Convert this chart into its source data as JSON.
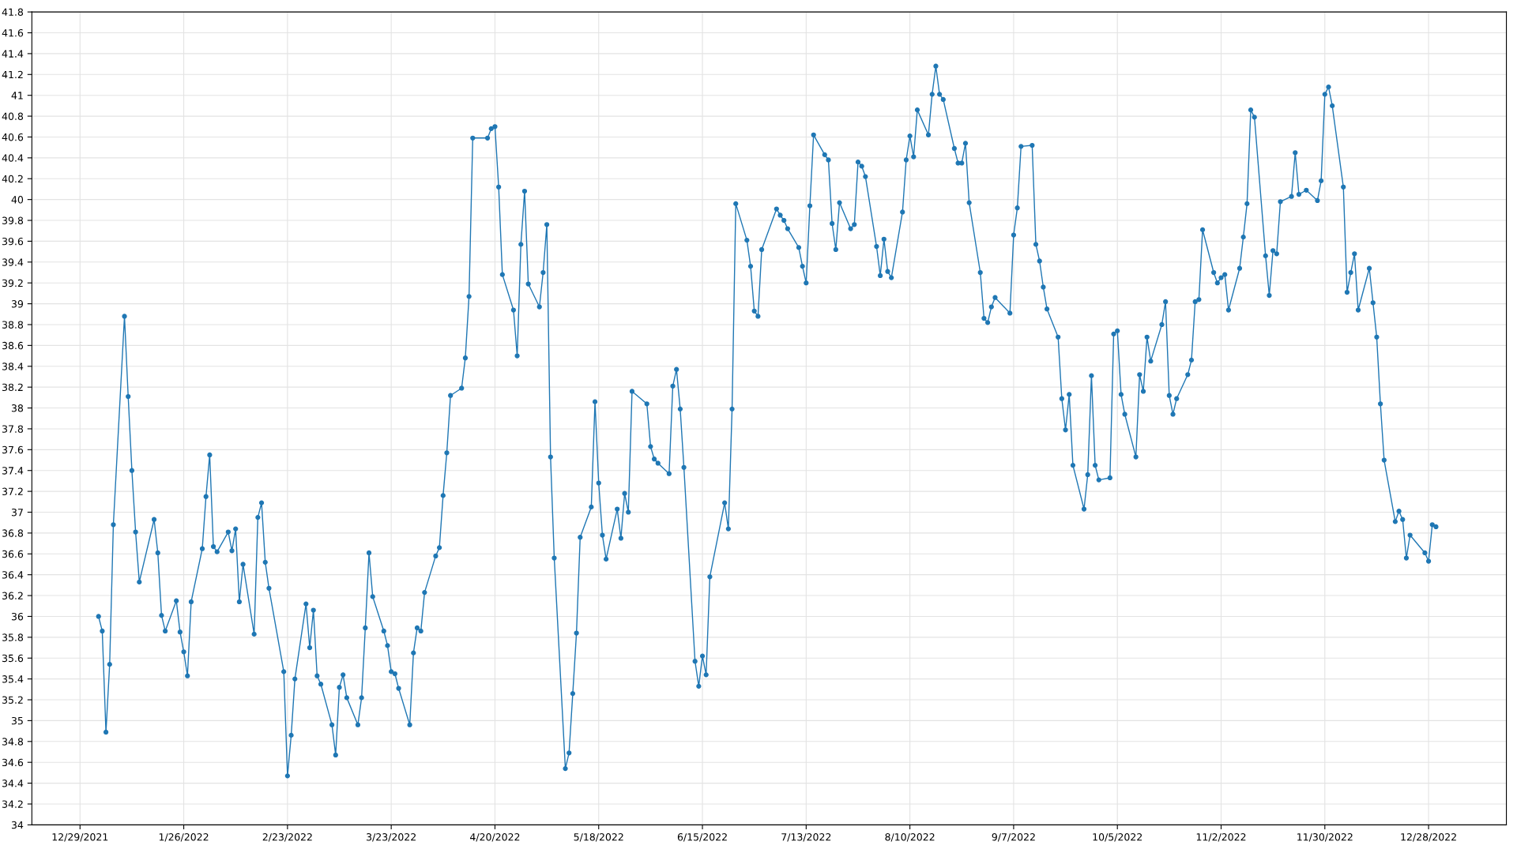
{
  "chart_data": {
    "type": "line",
    "color": "#1f77b4",
    "marker": "circle",
    "line_style": "solid",
    "grid": true,
    "xlim": [
      "2021-12-16",
      "2023-01-18"
    ],
    "xticks": [
      {
        "value": "2021-12-29",
        "label": "12/29/2021"
      },
      {
        "value": "2022-01-26",
        "label": "1/26/2022"
      },
      {
        "value": "2022-02-23",
        "label": "2/23/2022"
      },
      {
        "value": "2022-03-23",
        "label": "3/23/2022"
      },
      {
        "value": "2022-04-20",
        "label": "4/20/2022"
      },
      {
        "value": "2022-05-18",
        "label": "5/18/2022"
      },
      {
        "value": "2022-06-15",
        "label": "6/15/2022"
      },
      {
        "value": "2022-07-13",
        "label": "7/13/2022"
      },
      {
        "value": "2022-08-10",
        "label": "8/10/2022"
      },
      {
        "value": "2022-09-07",
        "label": "9/7/2022"
      },
      {
        "value": "2022-10-05",
        "label": "10/5/2022"
      },
      {
        "value": "2022-11-02",
        "label": "11/2/2022"
      },
      {
        "value": "2022-11-30",
        "label": "11/30/2022"
      },
      {
        "value": "2022-12-28",
        "label": "12/28/2022"
      }
    ],
    "ylim": [
      34,
      41.8
    ],
    "yticks": [
      34,
      34.2,
      34.4,
      34.6,
      34.8,
      35,
      35.2,
      35.4,
      35.6,
      35.8,
      36,
      36.2,
      36.4,
      36.6,
      36.8,
      37,
      37.2,
      37.4,
      37.6,
      37.8,
      38,
      38.2,
      38.4,
      38.6,
      38.8,
      39,
      39.2,
      39.4,
      39.6,
      39.8,
      40,
      40.2,
      40.4,
      40.6,
      40.8,
      41,
      41.2,
      41.4,
      41.6,
      41.8
    ],
    "x": [
      "2022-01-03",
      "2022-01-04",
      "2022-01-05",
      "2022-01-06",
      "2022-01-07",
      "2022-01-10",
      "2022-01-11",
      "2022-01-12",
      "2022-01-13",
      "2022-01-14",
      "2022-01-18",
      "2022-01-19",
      "2022-01-20",
      "2022-01-21",
      "2022-01-24",
      "2022-01-25",
      "2022-01-26",
      "2022-01-27",
      "2022-01-28",
      "2022-01-31",
      "2022-02-01",
      "2022-02-02",
      "2022-02-03",
      "2022-02-04",
      "2022-02-07",
      "2022-02-08",
      "2022-02-09",
      "2022-02-10",
      "2022-02-11",
      "2022-02-14",
      "2022-02-15",
      "2022-02-16",
      "2022-02-17",
      "2022-02-18",
      "2022-02-22",
      "2022-02-23",
      "2022-02-24",
      "2022-02-25",
      "2022-02-28",
      "2022-03-01",
      "2022-03-02",
      "2022-03-03",
      "2022-03-04",
      "2022-03-07",
      "2022-03-08",
      "2022-03-09",
      "2022-03-10",
      "2022-03-11",
      "2022-03-14",
      "2022-03-15",
      "2022-03-16",
      "2022-03-17",
      "2022-03-18",
      "2022-03-21",
      "2022-03-22",
      "2022-03-23",
      "2022-03-24",
      "2022-03-25",
      "2022-03-28",
      "2022-03-29",
      "2022-03-30",
      "2022-03-31",
      "2022-04-01",
      "2022-04-04",
      "2022-04-05",
      "2022-04-06",
      "2022-04-07",
      "2022-04-08",
      "2022-04-11",
      "2022-04-12",
      "2022-04-13",
      "2022-04-14",
      "2022-04-18",
      "2022-04-19",
      "2022-04-20",
      "2022-04-21",
      "2022-04-22",
      "2022-04-25",
      "2022-04-26",
      "2022-04-27",
      "2022-04-28",
      "2022-04-29",
      "2022-05-02",
      "2022-05-03",
      "2022-05-04",
      "2022-05-05",
      "2022-05-06",
      "2022-05-09",
      "2022-05-10",
      "2022-05-11",
      "2022-05-12",
      "2022-05-13",
      "2022-05-16",
      "2022-05-17",
      "2022-05-18",
      "2022-05-19",
      "2022-05-20",
      "2022-05-23",
      "2022-05-24",
      "2022-05-25",
      "2022-05-26",
      "2022-05-27",
      "2022-05-31",
      "2022-06-01",
      "2022-06-02",
      "2022-06-03",
      "2022-06-06",
      "2022-06-07",
      "2022-06-08",
      "2022-06-09",
      "2022-06-10",
      "2022-06-13",
      "2022-06-14",
      "2022-06-15",
      "2022-06-16",
      "2022-06-17",
      "2022-06-21",
      "2022-06-22",
      "2022-06-23",
      "2022-06-24",
      "2022-06-27",
      "2022-06-28",
      "2022-06-29",
      "2022-06-30",
      "2022-07-01",
      "2022-07-05",
      "2022-07-06",
      "2022-07-07",
      "2022-07-08",
      "2022-07-11",
      "2022-07-12",
      "2022-07-13",
      "2022-07-14",
      "2022-07-15",
      "2022-07-18",
      "2022-07-19",
      "2022-07-20",
      "2022-07-21",
      "2022-07-22",
      "2022-07-25",
      "2022-07-26",
      "2022-07-27",
      "2022-07-28",
      "2022-07-29",
      "2022-08-01",
      "2022-08-02",
      "2022-08-03",
      "2022-08-04",
      "2022-08-05",
      "2022-08-08",
      "2022-08-09",
      "2022-08-10",
      "2022-08-11",
      "2022-08-12",
      "2022-08-15",
      "2022-08-16",
      "2022-08-17",
      "2022-08-18",
      "2022-08-19",
      "2022-08-22",
      "2022-08-23",
      "2022-08-24",
      "2022-08-25",
      "2022-08-26",
      "2022-08-29",
      "2022-08-30",
      "2022-08-31",
      "2022-09-01",
      "2022-09-02",
      "2022-09-06",
      "2022-09-07",
      "2022-09-08",
      "2022-09-09",
      "2022-09-12",
      "2022-09-13",
      "2022-09-14",
      "2022-09-15",
      "2022-09-16",
      "2022-09-19",
      "2022-09-20",
      "2022-09-21",
      "2022-09-22",
      "2022-09-23",
      "2022-09-26",
      "2022-09-27",
      "2022-09-28",
      "2022-09-29",
      "2022-09-30",
      "2022-10-03",
      "2022-10-04",
      "2022-10-05",
      "2022-10-06",
      "2022-10-07",
      "2022-10-10",
      "2022-10-11",
      "2022-10-12",
      "2022-10-13",
      "2022-10-14",
      "2022-10-17",
      "2022-10-18",
      "2022-10-19",
      "2022-10-20",
      "2022-10-21",
      "2022-10-24",
      "2022-10-25",
      "2022-10-26",
      "2022-10-27",
      "2022-10-28",
      "2022-10-31",
      "2022-11-01",
      "2022-11-02",
      "2022-11-03",
      "2022-11-04",
      "2022-11-07",
      "2022-11-08",
      "2022-11-09",
      "2022-11-10",
      "2022-11-11",
      "2022-11-14",
      "2022-11-15",
      "2022-11-16",
      "2022-11-17",
      "2022-11-18",
      "2022-11-21",
      "2022-11-22",
      "2022-11-23",
      "2022-11-25",
      "2022-11-28",
      "2022-11-29",
      "2022-11-30",
      "2022-12-01",
      "2022-12-02",
      "2022-12-05",
      "2022-12-06",
      "2022-12-07",
      "2022-12-08",
      "2022-12-09",
      "2022-12-12",
      "2022-12-13",
      "2022-12-14",
      "2022-12-15",
      "2022-12-16",
      "2022-12-19",
      "2022-12-20",
      "2022-12-21",
      "2022-12-22",
      "2022-12-23",
      "2022-12-27",
      "2022-12-28",
      "2022-12-29",
      "2022-12-30"
    ],
    "values": [
      36.0,
      35.86,
      34.89,
      35.54,
      36.88,
      38.88,
      38.11,
      37.4,
      36.81,
      36.33,
      36.93,
      36.61,
      36.01,
      35.86,
      36.15,
      35.85,
      35.66,
      35.43,
      36.14,
      36.65,
      37.15,
      37.55,
      36.67,
      36.62,
      36.81,
      36.63,
      36.84,
      36.14,
      36.5,
      35.83,
      36.95,
      37.09,
      36.52,
      36.27,
      35.47,
      34.47,
      34.86,
      35.4,
      36.12,
      35.7,
      36.06,
      35.43,
      35.35,
      34.96,
      34.67,
      35.32,
      35.44,
      35.22,
      34.96,
      35.22,
      35.89,
      36.61,
      36.19,
      35.86,
      35.72,
      35.47,
      35.45,
      35.31,
      34.96,
      35.65,
      35.89,
      35.86,
      36.23,
      36.58,
      36.66,
      37.16,
      37.57,
      38.12,
      38.19,
      38.48,
      39.07,
      40.59,
      40.59,
      40.68,
      40.7,
      40.12,
      39.28,
      38.94,
      38.5,
      39.57,
      40.08,
      39.19,
      38.97,
      39.3,
      39.76,
      37.53,
      36.56,
      34.54,
      34.69,
      35.26,
      35.84,
      36.76,
      37.05,
      38.06,
      37.28,
      36.78,
      36.55,
      37.03,
      36.75,
      37.18,
      37.0,
      38.16,
      38.04,
      37.63,
      37.51,
      37.47,
      37.37,
      38.21,
      38.37,
      37.99,
      37.43,
      35.57,
      35.33,
      35.62,
      35.44,
      36.38,
      37.09,
      36.84,
      37.99,
      39.96,
      39.61,
      39.36,
      38.93,
      38.88,
      39.52,
      39.91,
      39.85,
      39.8,
      39.72,
      39.54,
      39.36,
      39.2,
      39.94,
      40.62,
      40.43,
      40.38,
      39.77,
      39.52,
      39.97,
      39.72,
      39.76,
      40.36,
      40.32,
      40.22,
      39.55,
      39.27,
      39.62,
      39.31,
      39.25,
      39.88,
      40.38,
      40.61,
      40.41,
      40.86,
      40.62,
      41.01,
      41.28,
      41.01,
      40.96,
      40.49,
      40.35,
      40.35,
      40.54,
      39.97,
      39.3,
      38.86,
      38.82,
      38.97,
      39.06,
      38.91,
      39.66,
      39.92,
      40.51,
      40.52,
      39.57,
      39.41,
      39.16,
      38.95,
      38.68,
      38.09,
      37.79,
      38.13,
      37.45,
      37.03,
      37.36,
      38.31,
      37.45,
      37.31,
      37.33,
      38.71,
      38.74,
      38.13,
      37.94,
      37.53,
      38.32,
      38.16,
      38.68,
      38.45,
      38.8,
      39.02,
      38.12,
      37.94,
      38.09,
      38.32,
      38.46,
      39.02,
      39.04,
      39.71,
      39.3,
      39.2,
      39.25,
      39.28,
      38.94,
      39.34,
      39.64,
      39.96,
      40.86,
      40.79,
      39.46,
      39.08,
      39.51,
      39.48,
      39.98,
      40.03,
      40.45,
      40.05,
      40.09,
      39.99,
      40.18,
      41.01,
      41.08,
      40.9,
      40.12,
      39.11,
      39.3,
      39.48,
      38.94,
      39.34,
      39.01,
      38.68,
      38.04,
      37.5,
      36.91,
      37.01,
      36.93,
      36.56,
      36.78,
      36.61,
      36.53,
      36.88,
      36.86
    ]
  }
}
